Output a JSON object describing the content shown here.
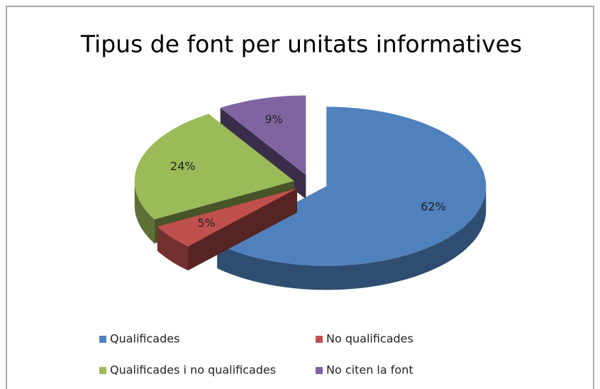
{
  "chart_data": {
    "type": "pie3d",
    "title": "Tipus de font per unitats informatives",
    "categories": [
      "Qualificades",
      "No qualificades",
      "Qualificades i no qualificades",
      "No citen la font"
    ],
    "values": [
      62,
      5,
      24,
      9
    ],
    "value_labels": [
      "62%",
      "5%",
      "24%",
      "9%"
    ],
    "colors": [
      "#4f81bd",
      "#c0504d",
      "#9bbb59",
      "#8064a2"
    ],
    "legend": "bottom"
  }
}
